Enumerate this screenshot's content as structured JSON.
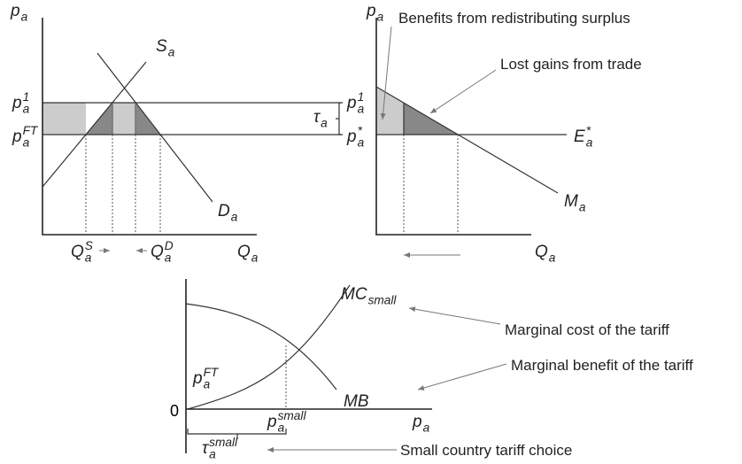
{
  "top_left": {
    "y_axis": {
      "base": "p",
      "sub": "a"
    },
    "x_axis": {
      "base": "Q",
      "sub": "a"
    },
    "supply": {
      "base": "S",
      "sub": "a"
    },
    "demand": {
      "base": "D",
      "sub": "a"
    },
    "price_tariff": {
      "base": "p",
      "sub": "a",
      "sup": "1"
    },
    "price_free_trade": {
      "base": "p",
      "sub": "a",
      "sup": "FT"
    },
    "quantity_supplied": {
      "base": "Q",
      "sub": "a",
      "sup": "S"
    },
    "quantity_demanded": {
      "base": "Q",
      "sub": "a",
      "sup": "D"
    }
  },
  "top_right": {
    "y_axis": {
      "base": "p",
      "sub": "a"
    },
    "x_axis": {
      "base": "Q",
      "sub": "a"
    },
    "tariff": {
      "base": "τ",
      "sub": "a"
    },
    "price_tariff": {
      "base": "p",
      "sub": "a",
      "sup": "1"
    },
    "world_price": {
      "base": "p",
      "sub": "a",
      "sup": "*"
    },
    "export_supply": {
      "base": "E",
      "sub": "a",
      "sup": "*"
    },
    "import_demand": {
      "base": "M",
      "sub": "a"
    },
    "annotation_benefits": "Benefits from redistributing surplus",
    "annotation_lost_gains": "Lost gains from trade"
  },
  "bottom": {
    "origin": "0",
    "x_axis": {
      "base": "p",
      "sub": "a"
    },
    "marginal_cost": {
      "base": "MC",
      "sub": "small"
    },
    "marginal_benefit": {
      "base": "MB"
    },
    "free_trade_price": {
      "base": "p",
      "sub": "a",
      "sup": "FT"
    },
    "optimal_price": {
      "base": "p",
      "sub": "a",
      "sup": "small"
    },
    "optimal_tariff": {
      "base": "τ",
      "sub": "a",
      "sup": "small"
    },
    "annotation_cost": "Marginal cost of the tariff",
    "annotation_benefit": "Marginal benefit of the tariff",
    "annotation_choice": "Small country tariff choice"
  }
}
